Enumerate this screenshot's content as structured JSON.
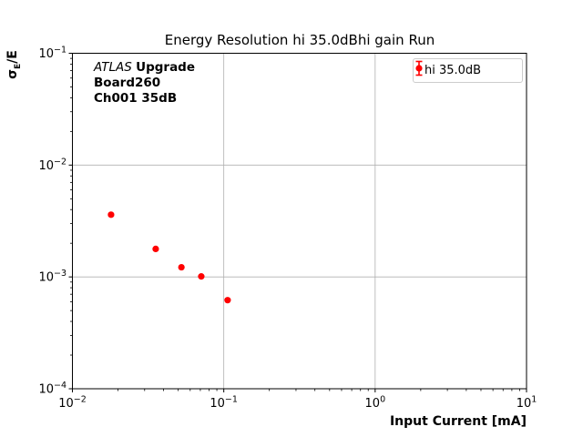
{
  "window": {
    "background": "#ffffff"
  },
  "title": {
    "text": "Energy Resolution hi 35.0dBhi gain Run"
  },
  "axis": {
    "xlabel": "Input Current [mA]",
    "ylabel_sigma": "σ",
    "ylabel_sub": "E",
    "ylabel_rest": "/E"
  },
  "annotation": {
    "experiment": "ATLAS",
    "program": "Upgrade",
    "board": "Board260",
    "channel": "Ch001 35dB"
  },
  "legend": {
    "label": "hi 35.0dB"
  },
  "colors": {
    "series": "#ff0000",
    "grid": "#b0b0b0",
    "spine": "#000000",
    "tick": "#000000",
    "legend_border": "#cccccc"
  },
  "chart_data": {
    "type": "scatter",
    "title": "Energy Resolution hi 35.0dBhi gain Run",
    "xlabel": "Input Current [mA]",
    "ylabel": "sigma_E/E",
    "xscale": "log",
    "yscale": "log",
    "xlim": [
      0.01,
      10
    ],
    "ylim": [
      0.0001,
      0.1
    ],
    "grid": true,
    "legend_position": "upper right",
    "tick_base": "10",
    "x_ticks": [
      {
        "value": 0.01,
        "label_exp": "−2"
      },
      {
        "value": 0.1,
        "label_exp": "−1"
      },
      {
        "value": 1,
        "label_exp": "0"
      },
      {
        "value": 10,
        "label_exp": "1"
      }
    ],
    "y_ticks": [
      {
        "value": 0.1,
        "label_exp": "−1"
      },
      {
        "value": 0.01,
        "label_exp": "−2"
      },
      {
        "value": 0.001,
        "label_exp": "−3"
      },
      {
        "value": 0.0001,
        "label_exp": "−4"
      }
    ],
    "series": [
      {
        "name": "hi 35.0dB",
        "color": "#ff0000",
        "marker": "circle",
        "x": [
          0.018,
          0.0355,
          0.0525,
          0.071,
          0.106
        ],
        "y": [
          0.0036,
          0.00178,
          0.00122,
          0.00101,
          0.00062
        ]
      }
    ]
  }
}
